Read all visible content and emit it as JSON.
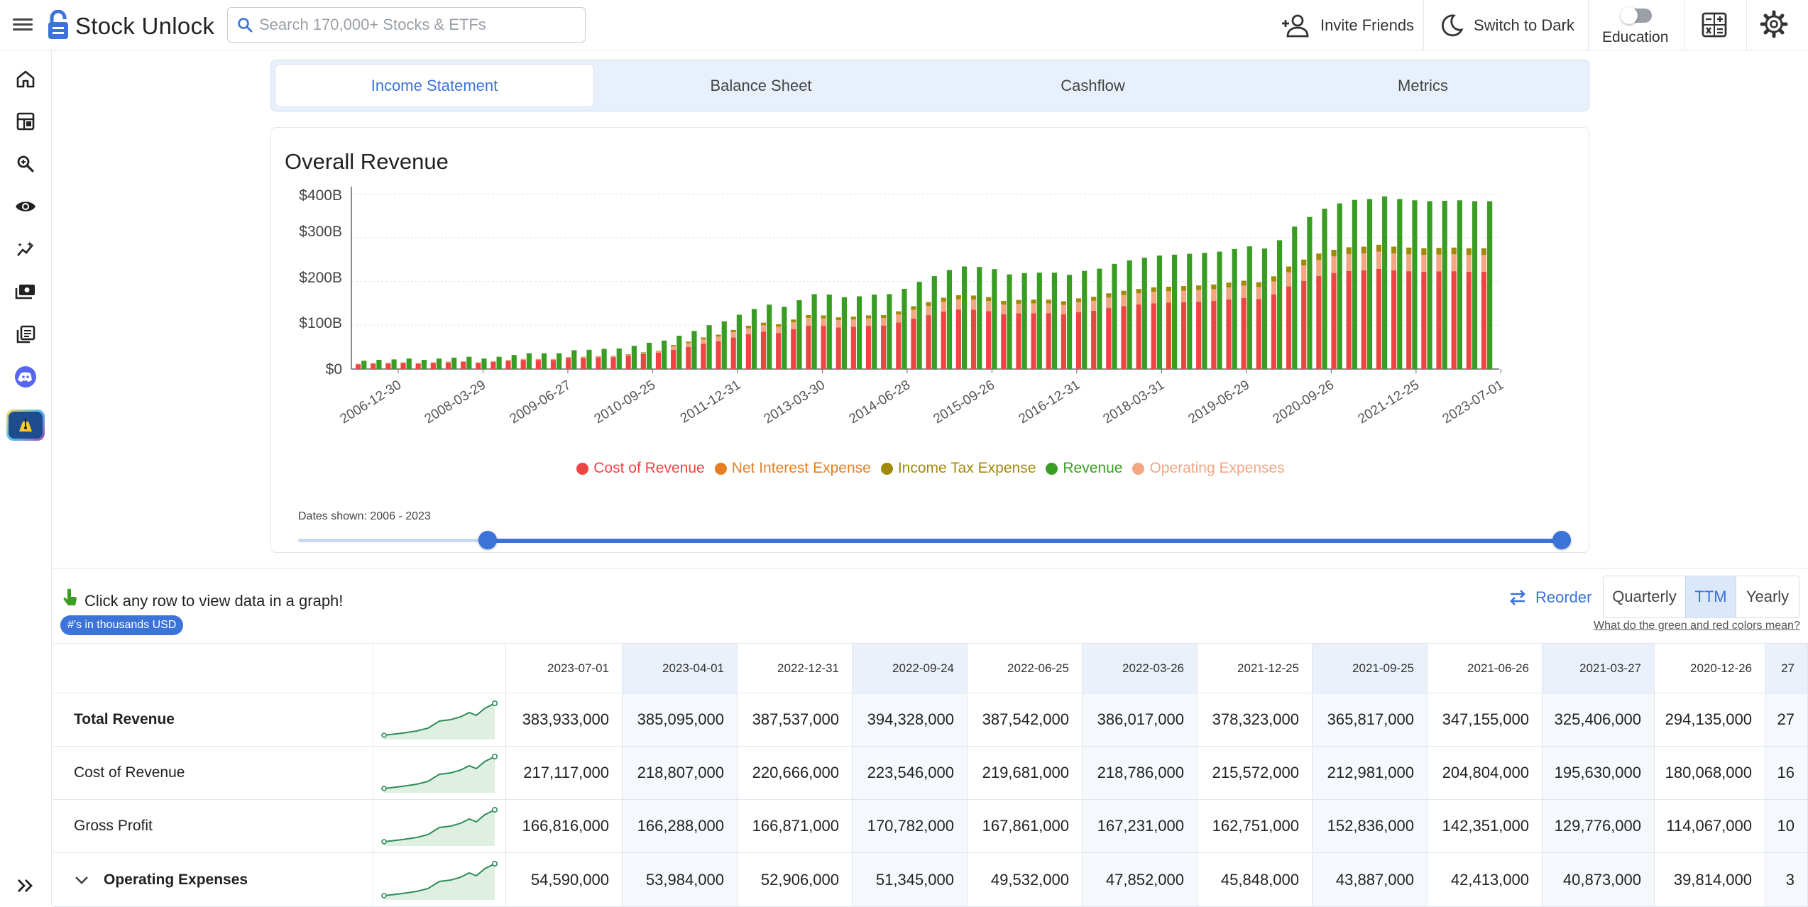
{
  "header": {
    "brand": "Stock Unlock",
    "search_placeholder": "Search 170,000+ Stocks & ETFs",
    "invite_label": "Invite Friends",
    "dark_label": "Switch to Dark",
    "education_label": "Education",
    "icons": [
      "hamburger-icon",
      "search-icon",
      "add-person-icon",
      "moon-icon",
      "calculator-icon",
      "gear-icon"
    ]
  },
  "sidebar": {
    "items": [
      "home-icon",
      "dashboard-icon",
      "zoom-search-icon",
      "eye-icon",
      "magic-chart-icon",
      "money-icon",
      "library-icon",
      "discord-icon",
      "pen-icon"
    ],
    "expand_icon": "double-chevron-right-icon"
  },
  "tabs": [
    {
      "label": "Income Statement",
      "active": true
    },
    {
      "label": "Balance Sheet",
      "active": false
    },
    {
      "label": "Cashflow",
      "active": false
    },
    {
      "label": "Metrics",
      "active": false
    }
  ],
  "chart_data": {
    "type": "bar",
    "title": "Overall Revenue",
    "y_ticks": [
      "$400B",
      "$300B",
      "$200B",
      "$100B",
      "$0"
    ],
    "ylim": [
      0,
      400
    ],
    "y_unit": "B USD",
    "x_tick_labels": [
      "2006-12-30",
      "2008-03-29",
      "2009-06-27",
      "2010-09-25",
      "2011-12-31",
      "2013-03-30",
      "2014-06-28",
      "2015-09-26",
      "2016-12-31",
      "2018-03-31",
      "2019-06-29",
      "2020-09-26",
      "2021-12-25",
      "2023-07-01"
    ],
    "legend": [
      {
        "name": "Cost of Revenue",
        "color": "#ef4444"
      },
      {
        "name": "Net Interest Expense",
        "color": "#e67e22"
      },
      {
        "name": "Income Tax Expense",
        "color": "#a18a0a"
      },
      {
        "name": "Revenue",
        "color": "#3a9d23"
      },
      {
        "name": "Operating Expenses",
        "color": "#f4a582"
      }
    ],
    "legend_placement": "bottom",
    "grid": true,
    "revenue_series": [
      19,
      21,
      22,
      24,
      21,
      24,
      26,
      28,
      24,
      28,
      32,
      36,
      36,
      36,
      43,
      44,
      46,
      47,
      53,
      60,
      65,
      76,
      87,
      100,
      109,
      124,
      137,
      147,
      142,
      157,
      171,
      170,
      164,
      166,
      170,
      171,
      183,
      199,
      212,
      226,
      234,
      233,
      228,
      216,
      219,
      220,
      220,
      215,
      224,
      229,
      240,
      248,
      254,
      259,
      261,
      263,
      265,
      268,
      274,
      280,
      275,
      294,
      325,
      347,
      366,
      378,
      386,
      388,
      394,
      388,
      385,
      383,
      384,
      385,
      383,
      383
    ],
    "cost_ratio": 0.58,
    "opex_ratio": 0.1,
    "tax_ratio": 0.04
  },
  "range": {
    "dates_shown": "Dates shown: 2006 - 2023",
    "start_fraction": 0.17,
    "end_fraction": 1.0
  },
  "table": {
    "hint": "Click any row to view data in a graph!",
    "units_badge": "#'s in thousands USD",
    "reorder_label": "Reorder",
    "periods": [
      {
        "label": "Quarterly",
        "active": false
      },
      {
        "label": "TTM",
        "active": true
      },
      {
        "label": "Yearly",
        "active": false
      }
    ],
    "colors_link": "What do the green and red colors mean?",
    "columns": [
      "2023-07-01",
      "2023-04-01",
      "2022-12-31",
      "2022-09-24",
      "2022-06-25",
      "2022-03-26",
      "2021-12-25",
      "2021-09-25",
      "2021-06-26",
      "2021-03-27",
      "2020-12-26",
      "27"
    ],
    "rows": [
      {
        "label": "Total Revenue",
        "bold": true,
        "values": [
          "383,933,000",
          "385,095,000",
          "387,537,000",
          "394,328,000",
          "387,542,000",
          "386,017,000",
          "378,323,000",
          "365,817,000",
          "347,155,000",
          "325,406,000",
          "294,135,000",
          "27"
        ]
      },
      {
        "label": "Cost of Revenue",
        "bold": false,
        "values": [
          "217,117,000",
          "218,807,000",
          "220,666,000",
          "223,546,000",
          "219,681,000",
          "218,786,000",
          "215,572,000",
          "212,981,000",
          "204,804,000",
          "195,630,000",
          "180,068,000",
          "16"
        ]
      },
      {
        "label": "Gross Profit",
        "bold": false,
        "values": [
          "166,816,000",
          "166,288,000",
          "166,871,000",
          "170,782,000",
          "167,861,000",
          "167,231,000",
          "162,751,000",
          "152,836,000",
          "142,351,000",
          "129,776,000",
          "114,067,000",
          "10"
        ]
      },
      {
        "label": "Operating Expenses",
        "bold": true,
        "expandable": true,
        "values": [
          "54,590,000",
          "53,984,000",
          "52,906,000",
          "51,345,000",
          "49,532,000",
          "47,852,000",
          "45,848,000",
          "43,887,000",
          "42,413,000",
          "40,873,000",
          "39,814,000",
          "3"
        ]
      }
    ]
  }
}
